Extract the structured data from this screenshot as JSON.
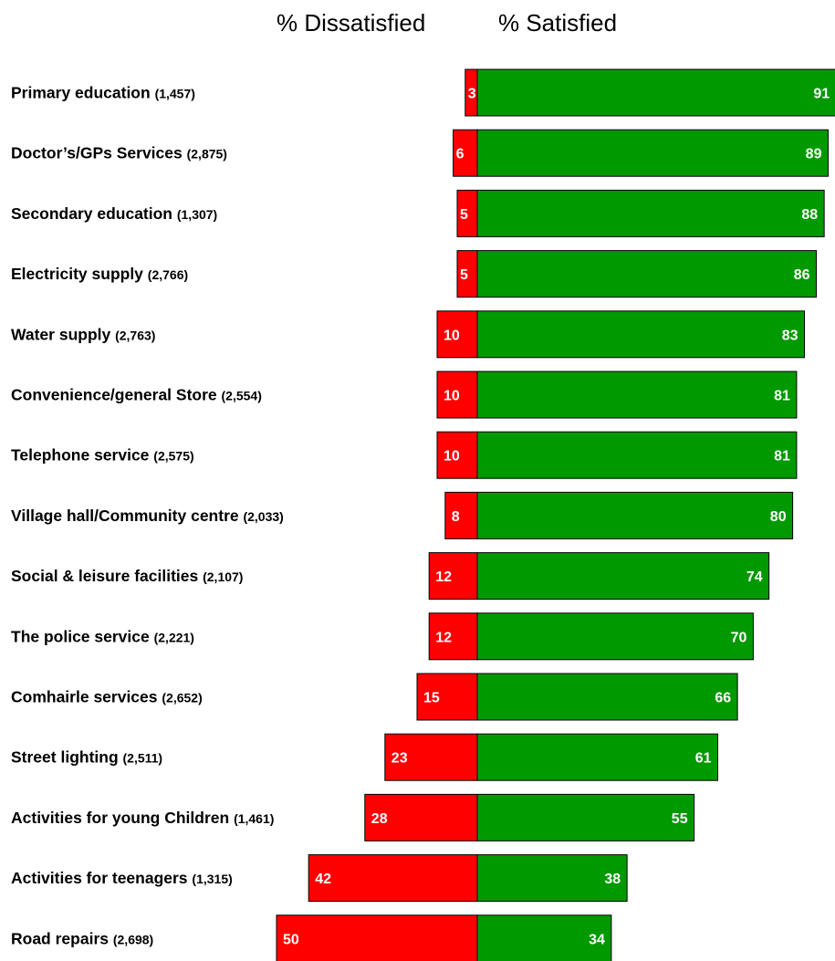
{
  "header": {
    "left_label": "% Dissatisfied",
    "right_label": "% Satisfied"
  },
  "colors": {
    "dissatisfied": "#ff0000",
    "satisfied": "#009900"
  },
  "chart_data": {
    "type": "bar",
    "orientation": "horizontal-diverging",
    "series": [
      {
        "name": "% Dissatisfied",
        "values": [
          3,
          6,
          5,
          5,
          10,
          10,
          10,
          8,
          12,
          12,
          15,
          23,
          28,
          42,
          50
        ]
      },
      {
        "name": "% Satisfied",
        "values": [
          91,
          89,
          88,
          86,
          83,
          81,
          81,
          80,
          74,
          70,
          66,
          61,
          55,
          38,
          34
        ]
      }
    ],
    "categories": [
      {
        "name": "Primary education",
        "count": "(1,457)"
      },
      {
        "name": "Doctor’s/GPs Services",
        "count": "(2,875)"
      },
      {
        "name": "Secondary education",
        "count": "(1,307)"
      },
      {
        "name": "Electricity supply",
        "count": "(2,766)"
      },
      {
        "name": "Water supply",
        "count": "(2,763)"
      },
      {
        "name": "Convenience/general Store",
        "count": "(2,554)"
      },
      {
        "name": "Telephone service",
        "count": "(2,575)"
      },
      {
        "name": "Village hall/Community centre",
        "count": "(2,033)"
      },
      {
        "name": "Social & leisure facilities",
        "count": "(2,107)"
      },
      {
        "name": "The police service",
        "count": "(2,221)"
      },
      {
        "name": "Comhairle services",
        "count": "(2,652)"
      },
      {
        "name": "Street lighting",
        "count": "(2,511)"
      },
      {
        "name": "Activities for young Children",
        "count": "(1,461)"
      },
      {
        "name": "Activities for teenagers",
        "count": "(1,315)"
      },
      {
        "name": "Road repairs",
        "count": "(2,698)"
      }
    ],
    "grid": false,
    "legend": "top"
  }
}
